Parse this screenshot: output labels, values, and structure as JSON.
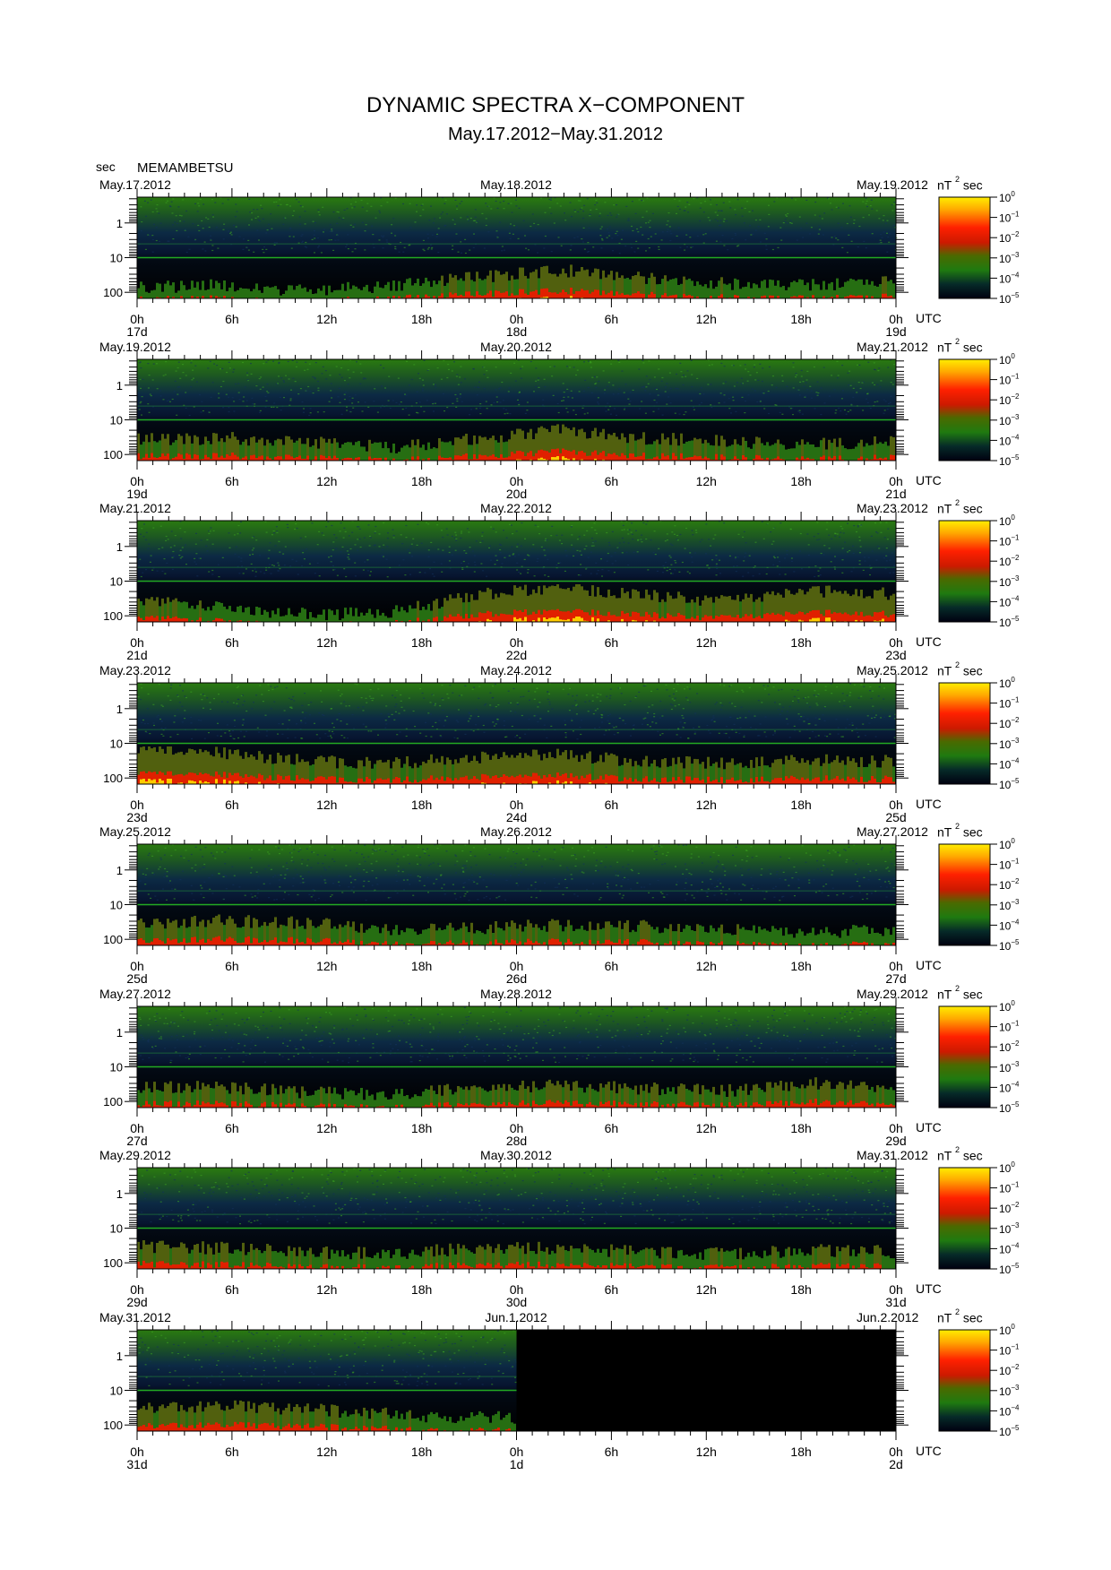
{
  "header": {
    "title": "DYNAMIC SPECTRA X−COMPONENT",
    "subtitle": "May.17.2012−May.31.2012",
    "y_unit": "sec",
    "station": "MEMAMBETSU"
  },
  "chart_data": {
    "type": "heatmap",
    "title": "DYNAMIC SPECTRA X−COMPONENT",
    "subtitle": "May.17.2012−May.31.2012",
    "station": "MEMAMBETSU",
    "ylabel": "sec",
    "y_scale": "log",
    "y_ticks": [
      "1",
      "10",
      "100"
    ],
    "x_ticks": [
      "0h",
      "6h",
      "12h",
      "18h",
      "0h",
      "6h",
      "12h",
      "18h",
      "0h"
    ],
    "x_unit": "UTC",
    "colorbar": {
      "unit": "nT",
      "unit_exp": "2",
      "unit_suffix": "sec",
      "scale": "log",
      "range": [
        1e-05,
        1
      ],
      "labels": [
        {
          "base": "10",
          "exp": "0"
        },
        {
          "base": "10",
          "exp": "−1"
        },
        {
          "base": "10",
          "exp": "−2"
        },
        {
          "base": "10",
          "exp": "−3"
        },
        {
          "base": "10",
          "exp": "−4"
        },
        {
          "base": "10",
          "exp": "−5"
        }
      ],
      "colors": [
        "#ffff00",
        "#ff9900",
        "#ff0000",
        "#2e8b00",
        "#003322",
        "#000000"
      ]
    },
    "panels": [
      {
        "date_left": "May.17.2012",
        "date_mid": "May.18.2012",
        "date_right": "May.19.2012",
        "day_labels": [
          "17d",
          "18d",
          "19d"
        ],
        "data_fraction": 1.0,
        "activity": [
          0.3,
          0.35,
          0.2,
          0.35,
          0.55,
          0.75,
          0.55,
          0.4,
          0.35,
          0.5
        ]
      },
      {
        "date_left": "May.19.2012",
        "date_mid": "May.20.2012",
        "date_right": "May.21.2012",
        "day_labels": [
          "19d",
          "20d",
          "21d"
        ],
        "data_fraction": 1.0,
        "activity": [
          0.55,
          0.6,
          0.5,
          0.35,
          0.6,
          0.8,
          0.6,
          0.5,
          0.45,
          0.5
        ]
      },
      {
        "date_left": "May.21.2012",
        "date_mid": "May.22.2012",
        "date_right": "May.23.2012",
        "day_labels": [
          "21d",
          "22d",
          "23d"
        ],
        "data_fraction": 1.0,
        "activity": [
          0.6,
          0.4,
          0.2,
          0.25,
          0.7,
          0.95,
          0.7,
          0.55,
          0.8,
          0.75
        ]
      },
      {
        "date_left": "May.23.2012",
        "date_mid": "May.24.2012",
        "date_right": "May.25.2012",
        "day_labels": [
          "23d",
          "24d",
          "25d"
        ],
        "data_fraction": 1.0,
        "activity": [
          0.95,
          0.85,
          0.6,
          0.55,
          0.7,
          0.8,
          0.6,
          0.55,
          0.65,
          0.6
        ]
      },
      {
        "date_left": "May.25.2012",
        "date_mid": "May.26.2012",
        "date_right": "May.27.2012",
        "day_labels": [
          "25d",
          "26d",
          "27d"
        ],
        "data_fraction": 1.0,
        "activity": [
          0.6,
          0.65,
          0.6,
          0.4,
          0.45,
          0.55,
          0.5,
          0.4,
          0.35,
          0.4
        ]
      },
      {
        "date_left": "May.27.2012",
        "date_mid": "May.28.2012",
        "date_right": "May.29.2012",
        "day_labels": [
          "27d",
          "28d",
          "29d"
        ],
        "data_fraction": 1.0,
        "activity": [
          0.55,
          0.55,
          0.4,
          0.35,
          0.55,
          0.6,
          0.5,
          0.45,
          0.65,
          0.5
        ]
      },
      {
        "date_left": "May.29.2012",
        "date_mid": "May.30.2012",
        "date_right": "May.31.2012",
        "day_labels": [
          "29d",
          "30d",
          "31d"
        ],
        "data_fraction": 1.0,
        "activity": [
          0.6,
          0.55,
          0.45,
          0.4,
          0.55,
          0.55,
          0.45,
          0.4,
          0.5,
          0.45
        ]
      },
      {
        "date_left": "May.31.2012",
        "date_mid": "Jun.1.2012",
        "date_right": "Jun.2.2012",
        "day_labels": [
          "31d",
          "1d",
          "2d"
        ],
        "data_fraction": 0.5,
        "activity": [
          0.6,
          0.65,
          0.55,
          0.4,
          0.35
        ]
      }
    ]
  }
}
